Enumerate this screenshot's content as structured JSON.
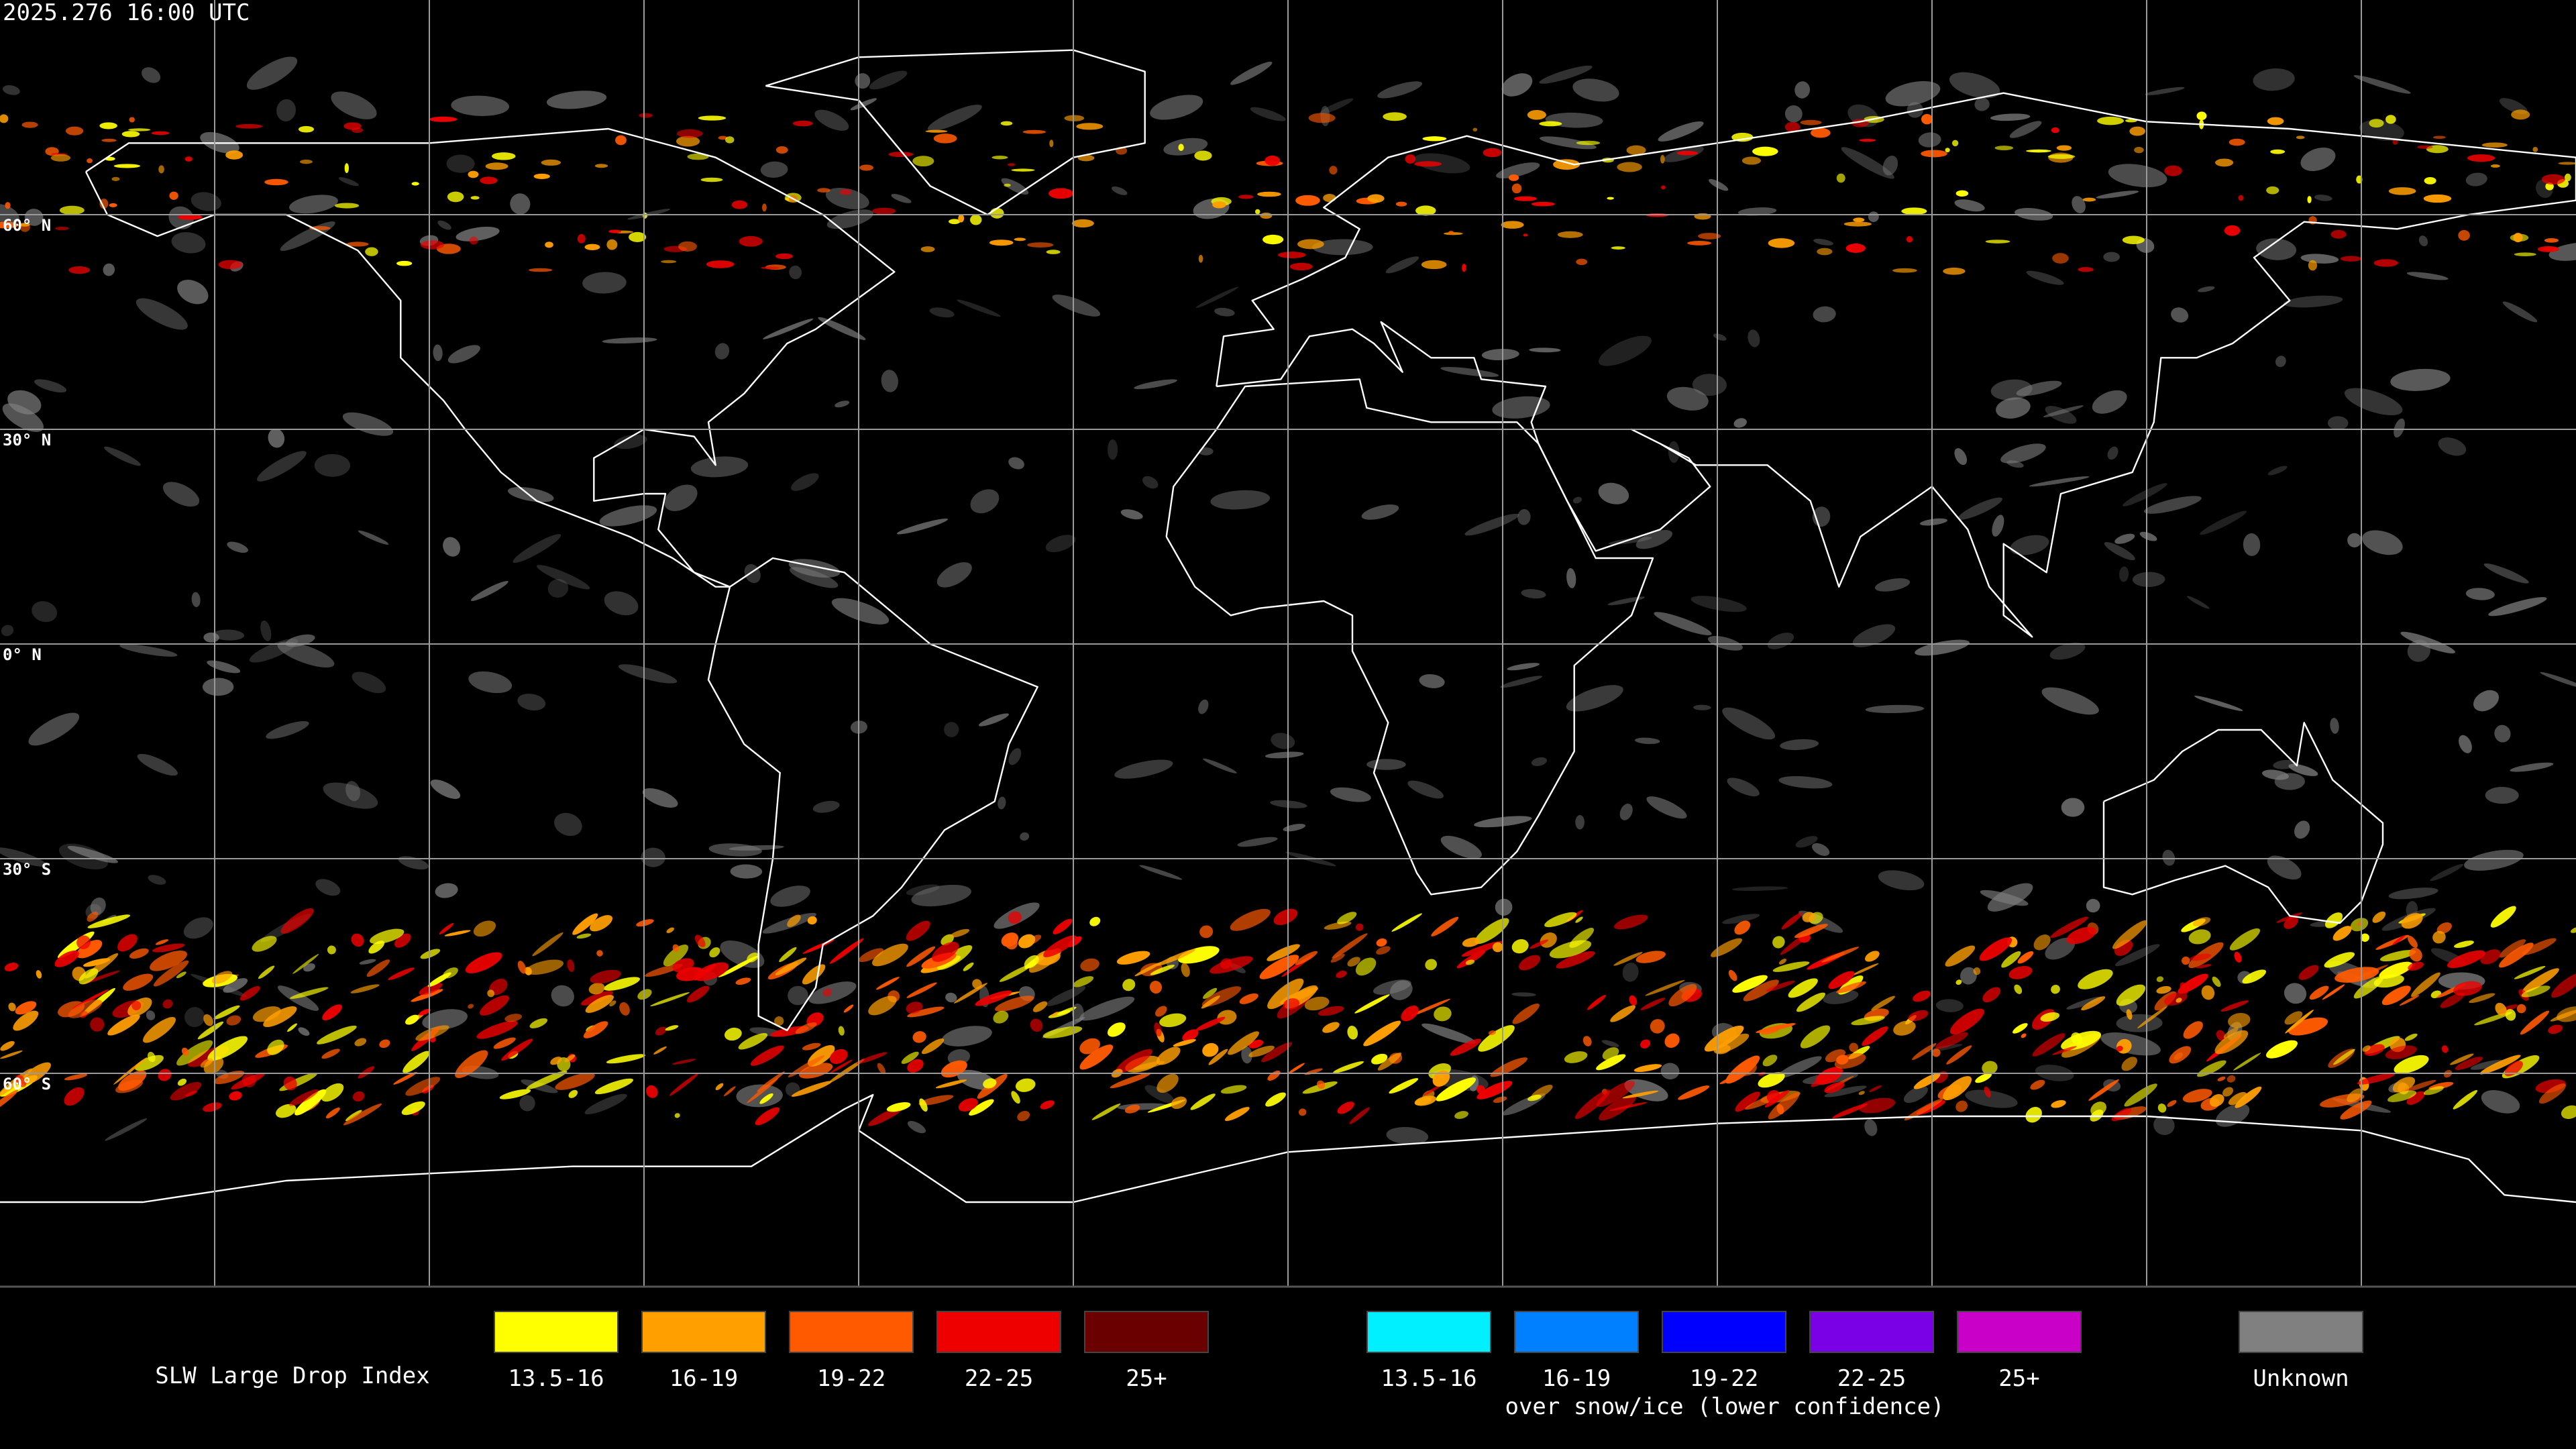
{
  "header": {
    "timestamp": "2025.276 16:00 UTC"
  },
  "map": {
    "lat_labels": [
      "60° N",
      "30° N",
      "0° N",
      "30° S",
      "60° S"
    ]
  },
  "legend": {
    "title": "SLW Large Drop Index",
    "liquid": [
      {
        "label": "13.5-16",
        "color": "#ffff00"
      },
      {
        "label": "16-19",
        "color": "#ff9f00"
      },
      {
        "label": "19-22",
        "color": "#ff5a00"
      },
      {
        "label": "22-25",
        "color": "#ee0000"
      },
      {
        "label": "25+",
        "color": "#6a0000"
      }
    ],
    "snow_ice": [
      {
        "label": "13.5-16",
        "color": "#00f0ff"
      },
      {
        "label": "16-19",
        "color": "#0080ff"
      },
      {
        "label": "19-22",
        "color": "#0000ff"
      },
      {
        "label": "22-25",
        "color": "#7a00e6"
      },
      {
        "label": "25+",
        "color": "#c800c8"
      }
    ],
    "snow_ice_caption": "over snow/ice (lower confidence)",
    "unknown": {
      "label": "Unknown",
      "color": "#808080"
    }
  }
}
